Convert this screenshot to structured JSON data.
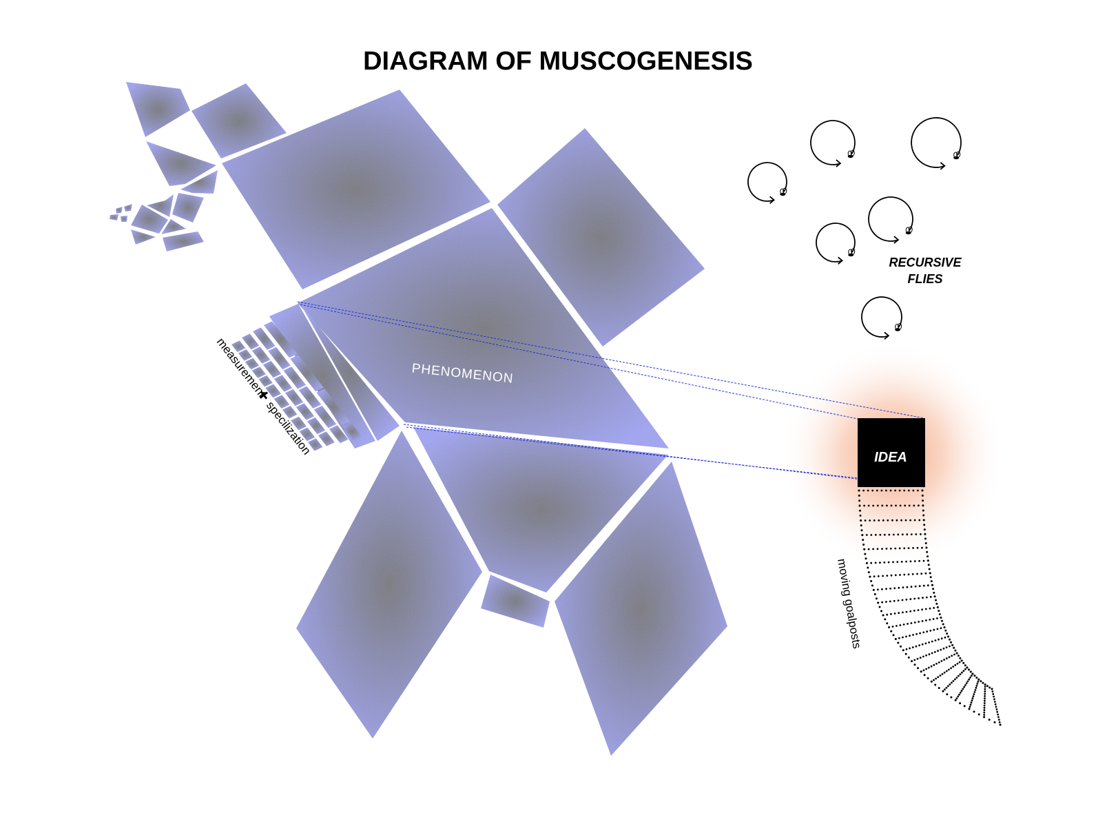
{
  "title": "DIAGRAM OF MUSCOGENESIS",
  "labels": {
    "phenomenon": "PHENOMENON",
    "measurement": "measurement",
    "plus": "+",
    "specialization": "specilization",
    "recursive_line1": "RECURSIVE",
    "recursive_line2": "FLIES",
    "idea": "IDEA",
    "goalposts": "moving goalposts"
  },
  "colors": {
    "facet_fill": "#9ea2f0",
    "facet_shade": "#777780",
    "connector": "#1f2fd6",
    "idea_box": "#000000",
    "idea_glow": "#f4a07a",
    "ink": "#000000"
  },
  "icons": [
    "fly-icon",
    "recursive-loop-arrow-icon"
  ]
}
